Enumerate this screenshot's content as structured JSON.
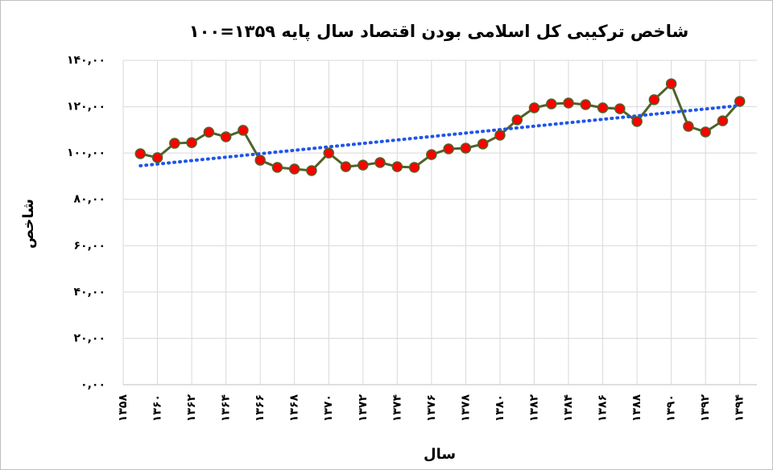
{
  "chart_data": {
    "type": "line",
    "title": "شاخص ترکیبی کل اسلامی بودن اقتصاد سال پایه ۱۳۵۹=۱۰۰",
    "x_label": "سال",
    "y_label": "شاخص",
    "x": [
      1359,
      1360,
      1361,
      1362,
      1363,
      1364,
      1365,
      1366,
      1367,
      1368,
      1369,
      1370,
      1371,
      1372,
      1373,
      1374,
      1375,
      1376,
      1377,
      1378,
      1379,
      1380,
      1381,
      1382,
      1383,
      1384,
      1385,
      1386,
      1387,
      1388,
      1389,
      1390,
      1391,
      1392,
      1393,
      1394
    ],
    "series": [
      {
        "color": "#4f6228",
        "marker_color": "#ff0000",
        "values": [
          99.7,
          98,
          104.2,
          104.5,
          109,
          107,
          109.8,
          96.9,
          93.8,
          93.1,
          92.4,
          100,
          94.1,
          94.8,
          95.9,
          94.1,
          93.8,
          99.3,
          101.8,
          102.1,
          103.9,
          107.7,
          114.3,
          119.5,
          121.2,
          121.6,
          120.9,
          119.5,
          119.1,
          113.6,
          123,
          129.9,
          111.5,
          109.1,
          113.9,
          122.3
        ]
      }
    ],
    "trendline": {
      "color": "#1f55e8",
      "x": [
        1359,
        1394
      ],
      "values": [
        94.5,
        120.5
      ]
    },
    "xlim": [
      1358,
      1395
    ],
    "xticks": [
      {
        "value": 1358,
        "label": "۱۳۵۸"
      },
      {
        "value": 1360,
        "label": "۱۳۶۰"
      },
      {
        "value": 1362,
        "label": "۱۳۶۲"
      },
      {
        "value": 1364,
        "label": "۱۳۶۴"
      },
      {
        "value": 1366,
        "label": "۱۳۶۶"
      },
      {
        "value": 1368,
        "label": "۱۳۶۸"
      },
      {
        "value": 1370,
        "label": "۱۳۷۰"
      },
      {
        "value": 1372,
        "label": "۱۳۷۲"
      },
      {
        "value": 1374,
        "label": "۱۳۷۴"
      },
      {
        "value": 1376,
        "label": "۱۳۷۶"
      },
      {
        "value": 1378,
        "label": "۱۳۷۸"
      },
      {
        "value": 1380,
        "label": "۱۳۸۰"
      },
      {
        "value": 1382,
        "label": "۱۳۸۲"
      },
      {
        "value": 1384,
        "label": "۱۳۸۴"
      },
      {
        "value": 1386,
        "label": "۱۳۸۶"
      },
      {
        "value": 1388,
        "label": "۱۳۸۸"
      },
      {
        "value": 1390,
        "label": "۱۳۹۰"
      },
      {
        "value": 1392,
        "label": "۱۳۹۲"
      },
      {
        "value": 1394,
        "label": "۱۳۹۴"
      }
    ],
    "ylim": [
      0,
      140
    ],
    "yticks": [
      {
        "value": 0,
        "label": "۰,۰۰"
      },
      {
        "value": 20,
        "label": "۲۰,۰۰"
      },
      {
        "value": 40,
        "label": "۴۰,۰۰"
      },
      {
        "value": 60,
        "label": "۶۰,۰۰"
      },
      {
        "value": 80,
        "label": "۸۰,۰۰"
      },
      {
        "value": 100,
        "label": "۱۰۰,۰۰"
      },
      {
        "value": 120,
        "label": "۱۲۰,۰۰"
      },
      {
        "value": 140,
        "label": "۱۴۰,۰۰"
      }
    ],
    "grid": true
  }
}
